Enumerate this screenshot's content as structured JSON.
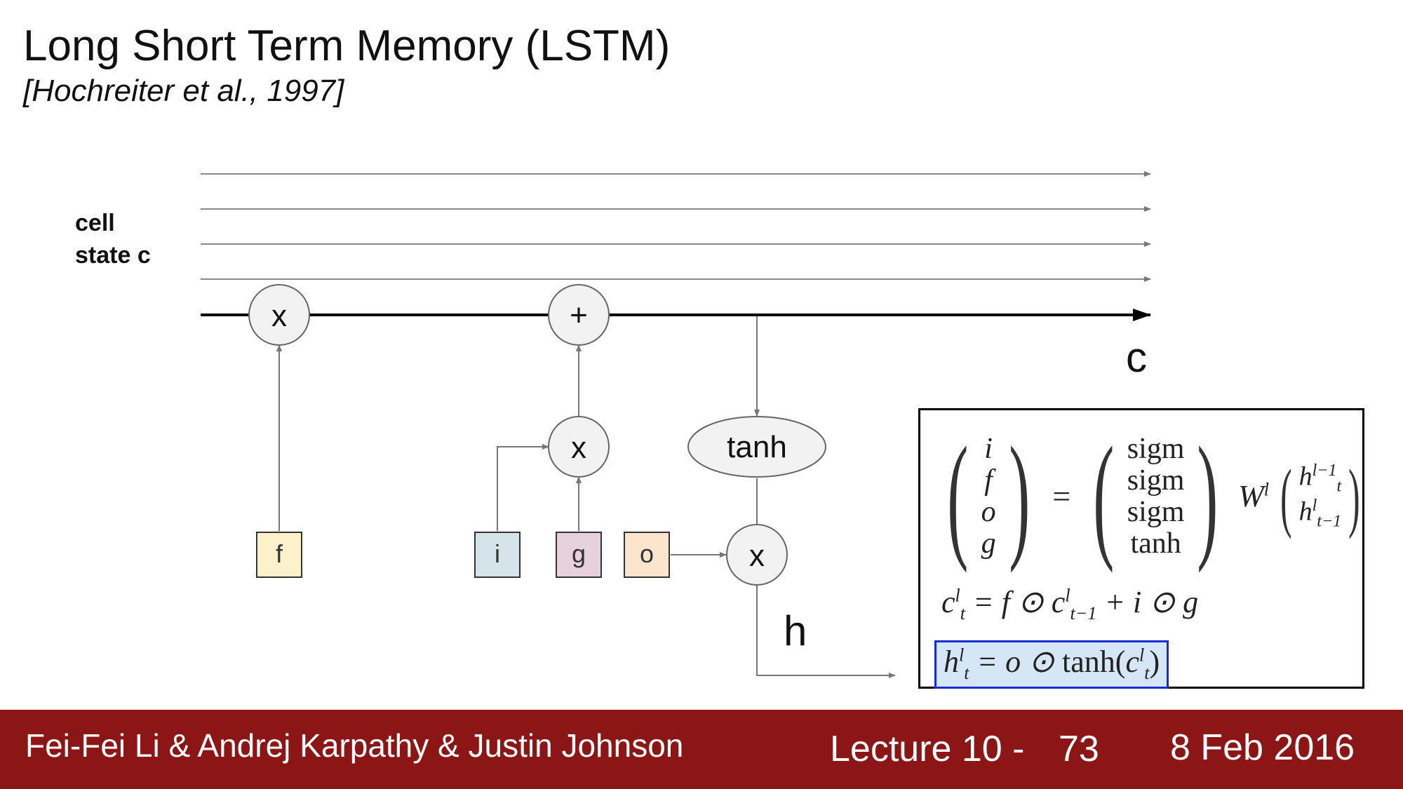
{
  "slide": {
    "title": "Long Short Term Memory (LSTM)",
    "subtitle": "[Hochreiter et al., 1997]"
  },
  "diagram": {
    "cell_label_line1": "cell",
    "cell_label_line2": "state c",
    "nodes": {
      "forget_multiply": "x",
      "add": "+",
      "input_multiply": "x",
      "tanh": "tanh",
      "output_multiply": "x"
    },
    "gates": {
      "f": {
        "label": "f",
        "color": "#fdf1cc"
      },
      "i": {
        "label": "i",
        "color": "#d5e4e9"
      },
      "g": {
        "label": "g",
        "color": "#e7d1dc"
      },
      "o": {
        "label": "o",
        "color": "#fce5cd"
      }
    },
    "output_c": "c",
    "output_h": "h"
  },
  "equations": {
    "lhs": [
      "i",
      "f",
      "o",
      "g"
    ],
    "activations": [
      "sigm",
      "sigm",
      "sigm",
      "tanh"
    ],
    "equals": "=",
    "weight": "W",
    "weight_sup": "l",
    "h_top": "h",
    "h_top_sup": "l−1",
    "h_top_sub": "t",
    "h_bottom": "h",
    "h_bottom_sup": "l",
    "h_bottom_sub": "t−1",
    "cell_eq": {
      "c": "c",
      "sup": "l",
      "sub": "t",
      "rhs_a": "= f ⊙ c",
      "rhs_sup": "l",
      "rhs_sub": "t−1",
      "rhs_b": "+ i ⊙ g"
    },
    "hidden_eq": {
      "h": "h",
      "sup": "l",
      "sub": "t",
      "rhs_a": "= o ⊙ ",
      "tanh": "tanh",
      "open": "(c",
      "rhs_sup": "l",
      "rhs_sub": "t",
      "close": ")"
    },
    "highlight_color": "#d5e6f7"
  },
  "footer": {
    "authors": "Fei-Fei Li & Andrej Karpathy & Justin Johnson",
    "lecture": "Lecture 10 -",
    "page": "73",
    "date": "8 Feb 2016",
    "bar_color": "#8c1515"
  }
}
